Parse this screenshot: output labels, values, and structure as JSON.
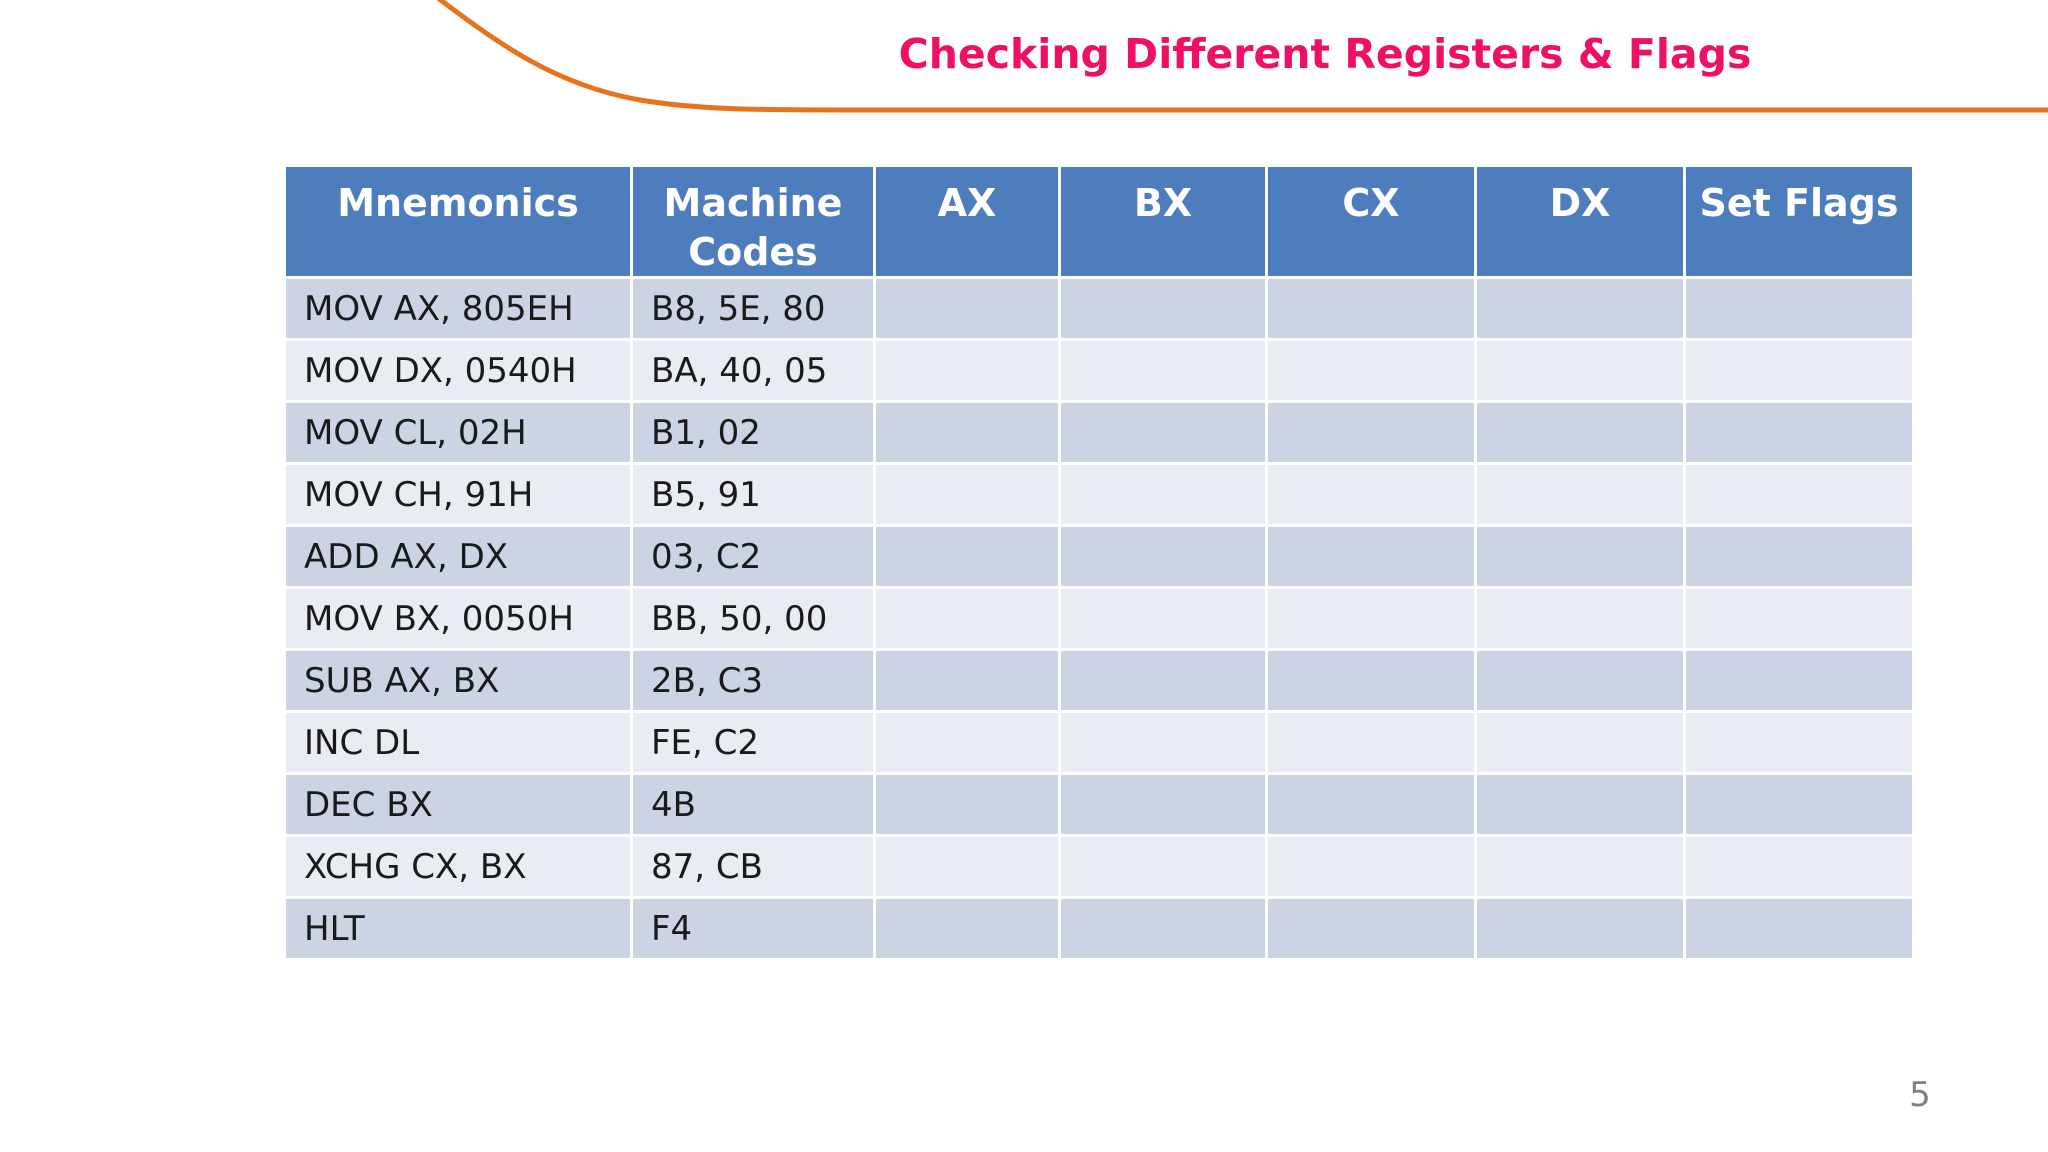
{
  "slide": {
    "title": "Checking Different Registers & Flags",
    "page_number": "5"
  },
  "colors": {
    "title_pink": "#ee1065",
    "accent_orange": "#e8731d",
    "table_header_bg": "#4e7dbd",
    "table_row_dark": "#ccd4e3",
    "table_row_light": "#e9ecf3",
    "header_text": "#ffffff",
    "body_text": "#1a1a1a",
    "page_number_gray": "#808080"
  },
  "table": {
    "columns": [
      "Mnemonics",
      "Machine Codes",
      "AX",
      "BX",
      "CX",
      "DX",
      "Set Flags"
    ],
    "column_keys": [
      "mnemonic",
      "machine-codes",
      "ax",
      "bx",
      "cx",
      "dx",
      "set-flags"
    ],
    "rows": [
      [
        "MOV AX, 805EH",
        "B8, 5E, 80",
        "",
        "",
        "",
        "",
        ""
      ],
      [
        "MOV DX, 0540H",
        "BA, 40, 05",
        "",
        "",
        "",
        "",
        ""
      ],
      [
        "MOV CL, 02H",
        "B1, 02",
        "",
        "",
        "",
        "",
        ""
      ],
      [
        "MOV CH, 91H",
        "B5, 91",
        "",
        "",
        "",
        "",
        ""
      ],
      [
        "ADD AX, DX",
        "03, C2",
        "",
        "",
        "",
        "",
        ""
      ],
      [
        "MOV BX, 0050H",
        "BB, 50, 00",
        "",
        "",
        "",
        "",
        ""
      ],
      [
        "SUB AX, BX",
        "2B, C3",
        "",
        "",
        "",
        "",
        ""
      ],
      [
        "INC DL",
        "FE, C2",
        "",
        "",
        "",
        "",
        ""
      ],
      [
        "DEC BX",
        "4B",
        "",
        "",
        "",
        "",
        ""
      ],
      [
        "XCHG CX, BX",
        "87, CB",
        "",
        "",
        "",
        "",
        ""
      ],
      [
        "HLT",
        "F4",
        "",
        "",
        "",
        "",
        ""
      ]
    ]
  }
}
